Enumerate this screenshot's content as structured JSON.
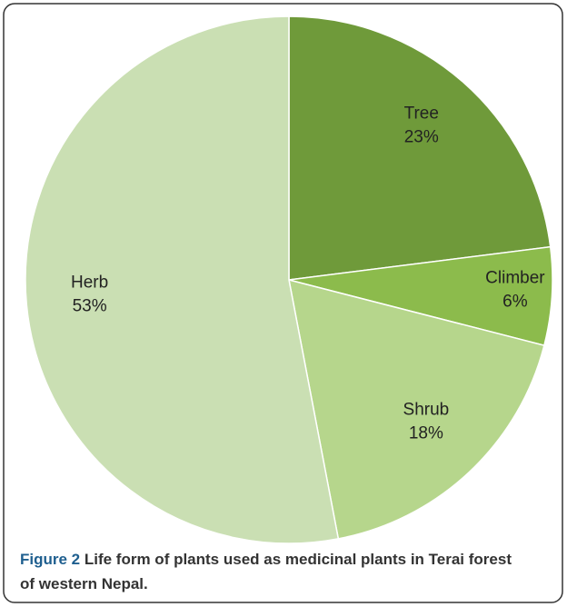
{
  "chart_data": {
    "type": "pie",
    "categories": [
      "Tree",
      "Climber",
      "Shrub",
      "Herb"
    ],
    "values": [
      23,
      6,
      18,
      53
    ],
    "value_labels": [
      "23%",
      "6%",
      "18%",
      "53%"
    ],
    "colors": [
      "#6f9a3a",
      "#8cbb4c",
      "#b6d68c",
      "#cadfb3"
    ],
    "caption": {
      "label": "Figure 2",
      "text": "Life form of plants used as medicinal plants in Terai forest of western Nepal."
    }
  }
}
